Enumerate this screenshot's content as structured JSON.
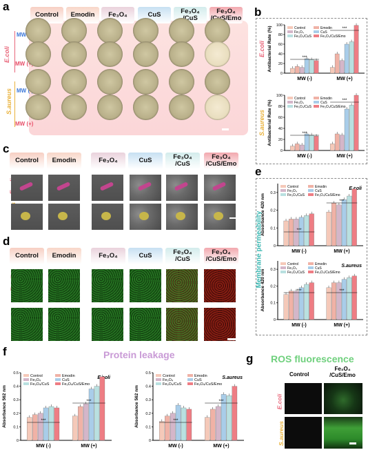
{
  "panel_letters": {
    "a": "a",
    "b": "b",
    "c": "c",
    "d": "d",
    "e": "e",
    "f": "f",
    "g": "g"
  },
  "groups": [
    {
      "l1": "Control",
      "l2": ""
    },
    {
      "l1": "Emodin",
      "l2": ""
    },
    {
      "l1": "Fe₃O₄",
      "l2": ""
    },
    {
      "l1": "CuS",
      "l2": ""
    },
    {
      "l1": "Fe₃O₄",
      "l2": "/CuS"
    },
    {
      "l1": "Fe₃O₄",
      "l2": "/CuS/Emo"
    }
  ],
  "header_colors": [
    "#f7cfc3",
    "#f8d6c8",
    "#ead2dc",
    "#c7e0f2",
    "#d3ecec",
    "#f2a8ae"
  ],
  "bacteria": {
    "ecoli": "E.coli",
    "saureus": "S.aureus"
  },
  "mw": {
    "neg": "MW (-)",
    "pos": "MW (+)"
  },
  "series_names": [
    "Control",
    "Emodin",
    "Fe₃O₄",
    "CuS",
    "Fe₃O₄/CuS",
    "Fe₃O₄/CuS/Emo"
  ],
  "series_colors": [
    "#f5c9b9",
    "#f0b2a6",
    "#d4b6c9",
    "#a9cde9",
    "#b9e0e0",
    "#ee7d84"
  ],
  "titles": {
    "protein": "Protein leakage",
    "ros": "ROS fluorescence",
    "membrane": "Membrane permeability"
  },
  "ros_cols": {
    "c1": "Control",
    "c2a": "Fe₃O₄",
    "c2b": "/CuS/Emo"
  },
  "significance": "***",
  "chart_data": [
    {
      "type": "bar",
      "panel": "b-top",
      "species": "E.coli",
      "ylabel": "Antibacterial Rate (%)",
      "categories": [
        "MW (-)",
        "MW (+)"
      ],
      "ylim": [
        0,
        100
      ],
      "series": [
        {
          "name": "Control",
          "values": [
            10,
            12
          ]
        },
        {
          "name": "Emodin",
          "values": [
            14,
            40
          ]
        },
        {
          "name": "Fe₃O₄",
          "values": [
            12,
            26
          ]
        },
        {
          "name": "CuS",
          "values": [
            30,
            60
          ]
        },
        {
          "name": "Fe₃O₄/CuS",
          "values": [
            28,
            65
          ]
        },
        {
          "name": "Fe₃O₄/CuS/Emo",
          "values": [
            26,
            99
          ]
        }
      ]
    },
    {
      "type": "bar",
      "panel": "b-bottom",
      "species": "S.aureus",
      "ylabel": "Antibacterial Rate (%)",
      "categories": [
        "MW (-)",
        "MW (+)"
      ],
      "ylim": [
        0,
        100
      ],
      "series": [
        {
          "name": "Control",
          "values": [
            8,
            12
          ]
        },
        {
          "name": "Emodin",
          "values": [
            12,
            30
          ]
        },
        {
          "name": "Fe₃O₄",
          "values": [
            10,
            28
          ]
        },
        {
          "name": "CuS",
          "values": [
            30,
            75
          ]
        },
        {
          "name": "Fe₃O₄/CuS",
          "values": [
            28,
            82
          ]
        },
        {
          "name": "Fe₃O₄/CuS/Emo",
          "values": [
            26,
            100
          ]
        }
      ]
    },
    {
      "type": "bar",
      "panel": "e-top",
      "species": "E.coli",
      "ylabel": "Absorbance 420 nm",
      "categories": [
        "MW (-)",
        "MW (+)"
      ],
      "ylim": [
        0,
        0.35
      ],
      "series": [
        {
          "name": "Control",
          "values": [
            0.14,
            0.19
          ]
        },
        {
          "name": "Emodin",
          "values": [
            0.15,
            0.24
          ]
        },
        {
          "name": "Fe₃O₄",
          "values": [
            0.15,
            0.23
          ]
        },
        {
          "name": "CuS",
          "values": [
            0.16,
            0.26
          ]
        },
        {
          "name": "Fe₃O₄/CuS",
          "values": [
            0.17,
            0.28
          ]
        },
        {
          "name": "Fe₃O₄/CuS/Emo",
          "values": [
            0.18,
            0.32
          ]
        }
      ]
    },
    {
      "type": "bar",
      "panel": "e-bottom",
      "species": "S.aureus",
      "ylabel": "Absorbance 420 nm",
      "categories": [
        "MW (-)",
        "MW (+)"
      ],
      "ylim": [
        0,
        0.35
      ],
      "series": [
        {
          "name": "Control",
          "values": [
            0.15,
            0.19
          ]
        },
        {
          "name": "Emodin",
          "values": [
            0.17,
            0.22
          ]
        },
        {
          "name": "Fe₃O₄",
          "values": [
            0.17,
            0.22
          ]
        },
        {
          "name": "CuS",
          "values": [
            0.19,
            0.24
          ]
        },
        {
          "name": "Fe₃O₄/CuS",
          "values": [
            0.21,
            0.25
          ]
        },
        {
          "name": "Fe₃O₄/CuS/Emo",
          "values": [
            0.22,
            0.26
          ]
        }
      ]
    },
    {
      "type": "bar",
      "panel": "f-left",
      "species": "E.coli",
      "ylabel": "Absorbance 562 nm",
      "categories": [
        "MW (-)",
        "MW (+)"
      ],
      "ylim": [
        0,
        0.5
      ],
      "series": [
        {
          "name": "Control",
          "values": [
            0.17,
            0.18
          ]
        },
        {
          "name": "Emodin",
          "values": [
            0.19,
            0.25
          ]
        },
        {
          "name": "Fe₃O₄",
          "values": [
            0.2,
            0.27
          ]
        },
        {
          "name": "CuS",
          "values": [
            0.24,
            0.38
          ]
        },
        {
          "name": "Fe₃O₄/CuS",
          "values": [
            0.25,
            0.4
          ]
        },
        {
          "name": "Fe₃O₄/CuS/Emo",
          "values": [
            0.24,
            0.47
          ]
        }
      ]
    },
    {
      "type": "bar",
      "panel": "f-right",
      "species": "S.aureus",
      "ylabel": "Absorbance 562 nm",
      "categories": [
        "MW (-)",
        "MW (+)"
      ],
      "ylim": [
        0,
        0.5
      ],
      "series": [
        {
          "name": "Control",
          "values": [
            0.14,
            0.17
          ]
        },
        {
          "name": "Emodin",
          "values": [
            0.18,
            0.23
          ]
        },
        {
          "name": "Fe₃O₄",
          "values": [
            0.2,
            0.25
          ]
        },
        {
          "name": "CuS",
          "values": [
            0.26,
            0.34
          ]
        },
        {
          "name": "Fe₃O₄/CuS",
          "values": [
            0.24,
            0.33
          ]
        },
        {
          "name": "Fe₃O₄/CuS/Emo",
          "values": [
            0.23,
            0.4
          ]
        }
      ]
    }
  ]
}
